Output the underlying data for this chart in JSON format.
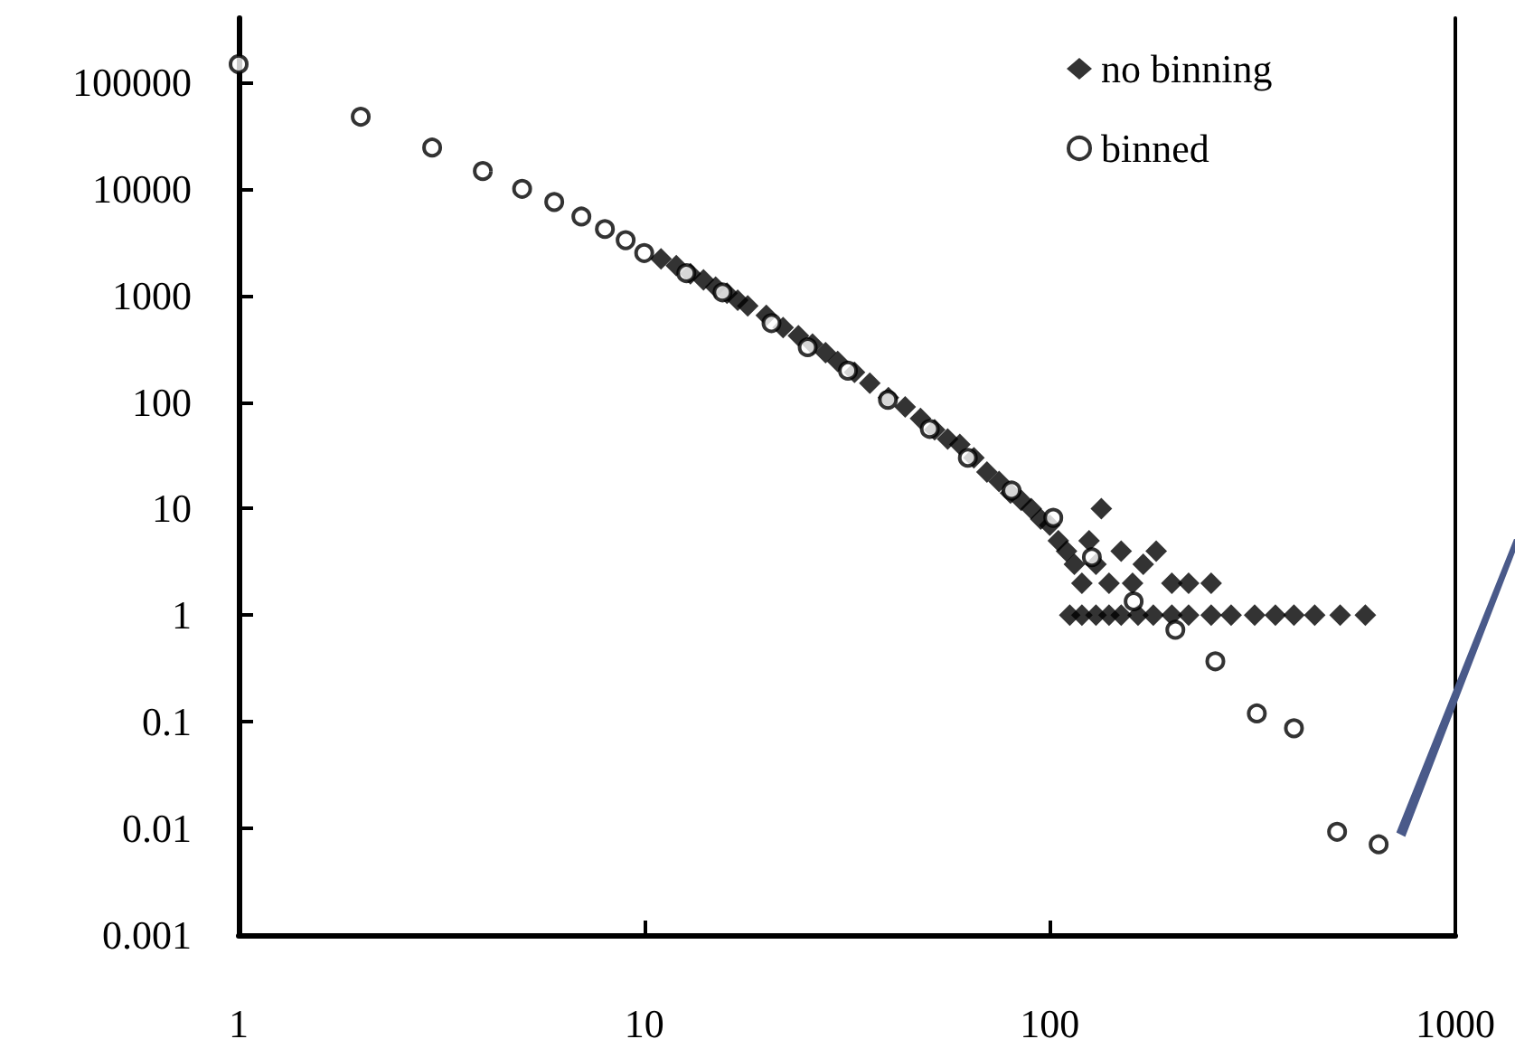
{
  "chart_data": {
    "type": "scatter",
    "log": "xy",
    "grid": false,
    "legend": "top right",
    "xlim": [
      1,
      1000
    ],
    "xticks": [
      1,
      10,
      100,
      1000
    ],
    "ylim": [
      0.001,
      400000
    ],
    "yticks": [
      0.001,
      0.01,
      0.1,
      1,
      10,
      100,
      1000,
      10000,
      100000
    ],
    "series": [
      {
        "name": "no binning",
        "color": "#000000",
        "marker": "diamond",
        "x": [
          11,
          12,
          13,
          14,
          15,
          16,
          17,
          18,
          20,
          22,
          24,
          26,
          28,
          30,
          33,
          36,
          40,
          44,
          48,
          52,
          56,
          60,
          65,
          70,
          75,
          80,
          85,
          90,
          95,
          100,
          105,
          110,
          115,
          120,
          125,
          130,
          134,
          140,
          150,
          160,
          170,
          183,
          200,
          220,
          250,
          112,
          120,
          130,
          140,
          150,
          165,
          180,
          200,
          220,
          250,
          280,
          320,
          360,
          400,
          450,
          520,
          600
        ],
        "values": [
          2200,
          1900,
          1600,
          1400,
          1200,
          1050,
          900,
          800,
          650,
          500,
          420,
          350,
          290,
          240,
          190,
          150,
          110,
          90,
          70,
          55,
          45,
          40,
          30,
          22,
          18,
          14,
          12,
          10,
          8,
          7,
          5,
          4,
          3,
          2,
          5,
          3,
          10,
          2,
          4,
          2,
          3,
          4,
          2,
          2,
          2,
          1,
          1,
          1,
          1,
          1,
          1,
          1,
          1,
          1,
          1,
          1,
          1,
          1,
          1,
          1,
          1,
          1
        ]
      },
      {
        "name": "binned",
        "color": "#000000",
        "marker": "circle",
        "x": [
          1,
          2,
          3,
          4,
          5,
          6,
          7,
          8,
          9,
          10,
          12.7,
          15.6,
          20.6,
          25.3,
          31.8,
          39.9,
          50.6,
          62.8,
          80.5,
          102,
          127,
          161,
          204,
          256,
          324,
          400,
          511,
          647
        ],
        "values": [
          148000,
          47500,
          24400,
          14700,
          10000,
          7530,
          5500,
          4200,
          3300,
          2500,
          1620,
          1070,
          550,
          327,
          197,
          105,
          56,
          30,
          14.8,
          8.2,
          3.5,
          1.35,
          0.73,
          0.37,
          0.12,
          0.087,
          0.0093,
          0.0071
        ]
      }
    ]
  }
}
